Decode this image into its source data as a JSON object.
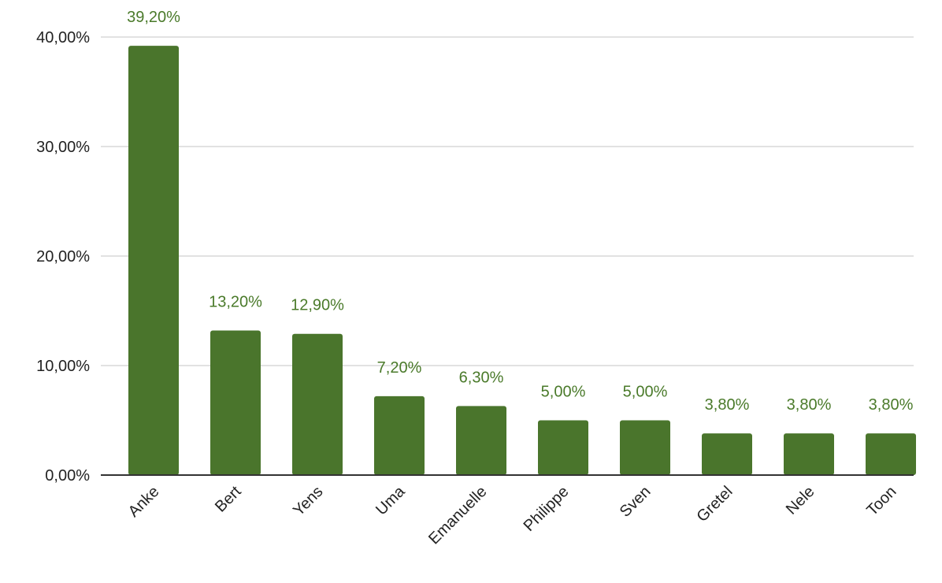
{
  "chart_data": {
    "type": "bar",
    "categories": [
      "Anke",
      "Bert",
      "Yens",
      "Uma",
      "Emanuelle",
      "Philippe",
      "Sven",
      "Gretel",
      "Nele",
      "Toon"
    ],
    "values": [
      39.2,
      13.2,
      12.9,
      7.2,
      6.3,
      5.0,
      5.0,
      3.8,
      3.8,
      3.8
    ],
    "data_labels": [
      "39,20%",
      "13,20%",
      "12,90%",
      "7,20%",
      "6,30%",
      "5,00%",
      "5,00%",
      "3,80%",
      "3,80%",
      "3,80%"
    ],
    "y_ticks": [
      0,
      10,
      20,
      30,
      40
    ],
    "y_tick_labels": [
      "0,00%",
      "10,00%",
      "20,00%",
      "30,00%",
      "40,00%"
    ],
    "ylim": [
      0,
      40
    ],
    "grid": true,
    "legend": "none",
    "bar_color": "#4a752c",
    "label_color": "#4a7a2a"
  }
}
